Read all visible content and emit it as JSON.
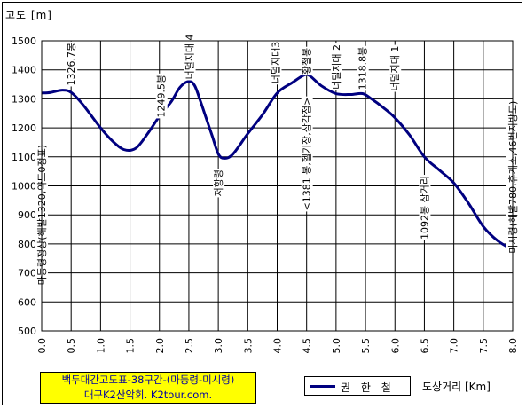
{
  "chart_data": {
    "type": "line",
    "ylabel": "고도 [m]",
    "xlabel": "도상거리 [Km]",
    "xlim": [
      0.0,
      8.0
    ],
    "ylim": [
      500,
      1500
    ],
    "x_ticks": [
      "0.0",
      "0.5",
      "1.0",
      "1.5",
      "2.0",
      "2.5",
      "3.0",
      "3.5",
      "4.0",
      "4.5",
      "5.0",
      "5.5",
      "6.0",
      "6.5",
      "7.0",
      "7.5",
      "8.0"
    ],
    "y_ticks": [
      "500",
      "600",
      "700",
      "800",
      "900",
      "1000",
      "1100",
      "1200",
      "1300",
      "1400",
      "1500"
    ],
    "grid": true,
    "legend_position": "bottom-center",
    "series": [
      {
        "name": "권 한 철",
        "color": "#000080",
        "x": [
          0.0,
          0.15,
          0.35,
          0.5,
          0.7,
          1.0,
          1.2,
          1.4,
          1.6,
          1.8,
          2.0,
          2.2,
          2.35,
          2.5,
          2.6,
          2.7,
          2.8,
          2.9,
          3.0,
          3.1,
          3.25,
          3.5,
          3.75,
          4.0,
          4.25,
          4.45,
          4.55,
          4.75,
          5.0,
          5.25,
          5.45,
          5.6,
          5.8,
          6.0,
          6.25,
          6.5,
          6.75,
          7.0,
          7.25,
          7.5,
          7.75,
          8.0
        ],
        "y": [
          1320,
          1322,
          1330,
          1322,
          1280,
          1200,
          1155,
          1125,
          1130,
          1180,
          1240,
          1290,
          1340,
          1360,
          1345,
          1290,
          1230,
          1170,
          1110,
          1095,
          1110,
          1180,
          1245,
          1320,
          1355,
          1381,
          1380,
          1345,
          1318,
          1315,
          1318,
          1300,
          1270,
          1235,
          1175,
          1100,
          1055,
          1010,
          940,
          860,
          810,
          780
        ]
      }
    ],
    "annotations": [
      "1326.7봉",
      "1249.5봉",
      "너덜지대 4",
      "저항령",
      "너덜지대3",
      "황철봉",
      "<1381 봉,헬기장,삼각점>",
      "너덜지대 2",
      "1318.8봉",
      "너덜지대 1",
      "1092봉 삼거리",
      "마등령정상(해발1320,약도0정표)",
      "미시령(해발780,휴게소,46번지방도)"
    ]
  },
  "title_box": {
    "line1": "백두대간고도표-38구간-(마등령-미시령)",
    "line2": "대구K2산악회. K2tour.com."
  },
  "legend": {
    "label": "권 한 철"
  },
  "axis": {
    "ylabel": "고도 [m]",
    "xlabel": "도상거리 [Km]"
  }
}
